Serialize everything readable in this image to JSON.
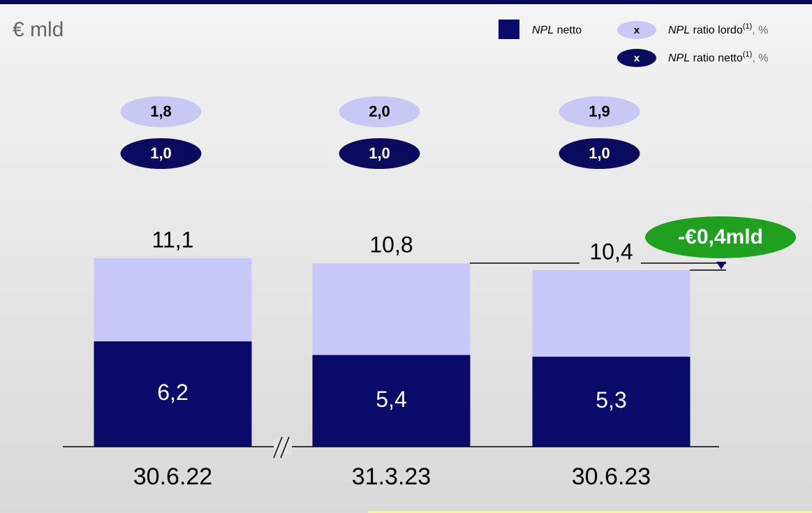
{
  "unit_label": "€ mld",
  "legend": [
    {
      "italic": "NPL",
      "text": " netto"
    },
    {
      "marker": "x",
      "italic": "NPL",
      "text": " ratio lordo",
      "sup": "(1)",
      "suffix": ", %"
    },
    {
      "marker": "x",
      "italic": "NPL",
      "text": " ratio netto",
      "sup": "(1)",
      "suffix": ", %"
    }
  ],
  "annotation": "-€0,4mld",
  "chart_data": {
    "type": "bar",
    "categories": [
      "30.6.22",
      "31.3.23",
      "30.6.23"
    ],
    "series": [
      {
        "color": "#c8c8f8",
        "values": [
          11.1,
          10.8,
          10.4
        ],
        "value_labels": [
          "11,1",
          "10,8",
          "10,4"
        ]
      },
      {
        "color": "#0a0a6b",
        "values": [
          6.2,
          5.4,
          5.3
        ],
        "value_labels": [
          "6,2",
          "5,4",
          "5,3"
        ]
      }
    ],
    "ratios": [
      {
        "color": "#c8c8f4",
        "text_color": "#000000",
        "values": [
          1.8,
          2.0,
          1.9
        ],
        "value_labels": [
          "1,8",
          "2,0",
          "1,9"
        ]
      },
      {
        "color": "#0a0a5e",
        "text_color": "#ffffff",
        "values": [
          1.0,
          1.0,
          1.0
        ],
        "value_labels": [
          "1,0",
          "1,0",
          "1,0"
        ]
      }
    ]
  }
}
